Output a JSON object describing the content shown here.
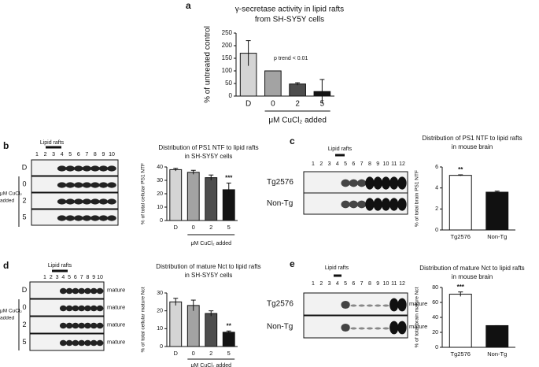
{
  "panels": [
    "a",
    "b",
    "c",
    "d",
    "e"
  ],
  "blots": [
    {
      "lipid_rafts": "Lipid rafts",
      "lanes": [
        "1",
        "2",
        "3",
        "4",
        "5",
        "6",
        "7",
        "8",
        "9",
        "10"
      ],
      "rows": [
        "D",
        "0",
        "2",
        "5"
      ],
      "group_label": [
        "μM CuCl₂",
        "added"
      ]
    },
    {
      "lipid_rafts": "Lipid rafts",
      "lanes": [
        "1",
        "2",
        "3",
        "4",
        "5",
        "6",
        "7",
        "8",
        "9",
        "10",
        "11",
        "12"
      ],
      "rows": [
        "Tg2576",
        "Non-Tg"
      ]
    },
    {
      "lipid_rafts": "Lipid rafts",
      "lanes": [
        "1",
        "2",
        "3",
        "4",
        "5",
        "6",
        "7",
        "8",
        "9",
        "10"
      ],
      "rows": [
        "D",
        "0",
        "2",
        "5"
      ],
      "band_labels": [
        "mature",
        "mature",
        "mature",
        "mature"
      ],
      "group_label": [
        "μM CuCl₂",
        "added"
      ]
    },
    {
      "lipid_rafts": "Lipid rafts",
      "lanes": [
        "1",
        "2",
        "3",
        "4",
        "5",
        "6",
        "7",
        "8",
        "9",
        "10",
        "11",
        "12"
      ],
      "rows": [
        "Tg2576",
        "Non-Tg"
      ],
      "band_labels": [
        "mature",
        "mature"
      ]
    }
  ],
  "chart_data": [
    {
      "type": "bar",
      "title": [
        "γ-secretase activity in lipid rafts",
        "from SH-SY5Y cells"
      ],
      "ylabel": "% of untreated control",
      "xlabel": "μM CuCl₂ added",
      "categories": [
        "D",
        "0",
        "2",
        "5"
      ],
      "values": [
        170,
        100,
        48,
        18
      ],
      "errors": [
        50,
        0,
        5,
        48
      ],
      "colors": [
        "#d4d4d4",
        "#a3a3a3",
        "#4d4d4d",
        "#141414"
      ],
      "ylim": [
        0,
        250
      ],
      "yticks": [
        0,
        50,
        100,
        150,
        200,
        250
      ],
      "annotations": [
        {
          "text": "p trend < 0.01"
        }
      ]
    },
    {
      "type": "bar",
      "title": [
        "Distribution of PS1 NTF to lipid rafts",
        "in SH-SY5Y cells"
      ],
      "ylabel": "% of total cellular PS1 NTF",
      "xlabel": "μM CuCl₂ added",
      "categories": [
        "D",
        "0",
        "2",
        "5"
      ],
      "values": [
        38,
        36,
        32,
        23
      ],
      "errors": [
        1,
        1.5,
        2,
        5
      ],
      "colors": [
        "#d4d4d4",
        "#a3a3a3",
        "#4d4d4d",
        "#141414"
      ],
      "ylim": [
        0,
        40
      ],
      "yticks": [
        0,
        10,
        20,
        30,
        40
      ],
      "annotations": [
        {
          "text": "***",
          "x": "5"
        }
      ]
    },
    {
      "type": "bar",
      "title": [
        "Distribution of PS1 NTF to lipid rafts",
        "in mouse brain"
      ],
      "ylabel": "% of total brain PS1 NTF",
      "categories": [
        "Tg2576",
        "Non-Tg"
      ],
      "values": [
        5.2,
        3.6
      ],
      "errors": [
        0.05,
        0.1
      ],
      "colors": [
        "#ffffff",
        "#111111"
      ],
      "ylim": [
        0,
        6
      ],
      "yticks": [
        0,
        2,
        4,
        6
      ],
      "annotations": [
        {
          "text": "**",
          "x": "Tg2576"
        }
      ]
    },
    {
      "type": "bar",
      "title": [
        "Distribution of mature Nct to lipid rafts",
        "in SH-SY5Y cells"
      ],
      "ylabel": "% of total cellular mature Nct",
      "xlabel": "μM CuCl₂ added",
      "categories": [
        "D",
        "0",
        "2",
        "5"
      ],
      "values": [
        25,
        23,
        18.5,
        8
      ],
      "errors": [
        2,
        3,
        1.5,
        0.7
      ],
      "colors": [
        "#d4d4d4",
        "#a3a3a3",
        "#4d4d4d",
        "#141414"
      ],
      "ylim": [
        0,
        30
      ],
      "yticks": [
        0,
        10,
        20,
        30
      ],
      "annotations": [
        {
          "text": "**",
          "x": "5"
        }
      ]
    },
    {
      "type": "bar",
      "title": [
        "Distribution of mature Nct to lipid rafts",
        "in mouse brain"
      ],
      "ylabel": "% of total brain mature Nct",
      "categories": [
        "Tg2576",
        "Non-Tg"
      ],
      "values": [
        71,
        29
      ],
      "errors": [
        3,
        0
      ],
      "colors": [
        "#ffffff",
        "#111111"
      ],
      "ylim": [
        0,
        80
      ],
      "yticks": [
        0,
        20,
        40,
        60,
        80
      ],
      "annotations": [
        {
          "text": "***",
          "x": "Tg2576"
        }
      ]
    }
  ]
}
